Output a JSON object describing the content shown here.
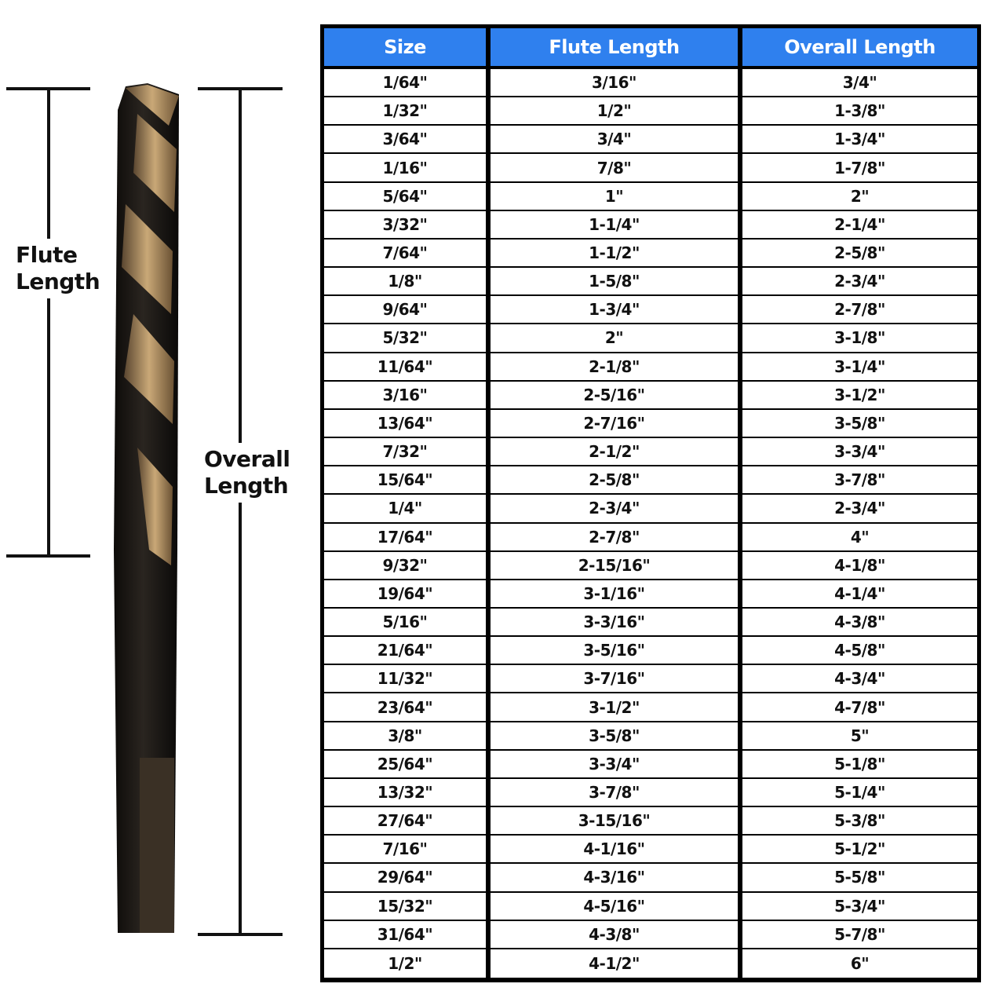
{
  "labels": {
    "flute": "Flute Length",
    "overall": "Overall Length"
  },
  "colors": {
    "header_bg": "#2f80ee",
    "header_text": "#ffffff",
    "border": "#000000"
  },
  "table": {
    "headers": [
      "Size",
      "Flute Length",
      "Overall Length"
    ],
    "rows": [
      [
        "1/64\"",
        "3/16\"",
        "3/4\""
      ],
      [
        "1/32\"",
        "1/2\"",
        "1-3/8\""
      ],
      [
        "3/64\"",
        "3/4\"",
        "1-3/4\""
      ],
      [
        "1/16\"",
        "7/8\"",
        "1-7/8\""
      ],
      [
        "5/64\"",
        "1\"",
        "2\""
      ],
      [
        "3/32\"",
        "1-1/4\"",
        "2-1/4\""
      ],
      [
        "7/64\"",
        "1-1/2\"",
        "2-5/8\""
      ],
      [
        "1/8\"",
        "1-5/8\"",
        "2-3/4\""
      ],
      [
        "9/64\"",
        "1-3/4\"",
        "2-7/8\""
      ],
      [
        "5/32\"",
        "2\"",
        "3-1/8\""
      ],
      [
        "11/64\"",
        "2-1/8\"",
        "3-1/4\""
      ],
      [
        "3/16\"",
        "2-5/16\"",
        "3-1/2\""
      ],
      [
        "13/64\"",
        "2-7/16\"",
        "3-5/8\""
      ],
      [
        "7/32\"",
        "2-1/2\"",
        "3-3/4\""
      ],
      [
        "15/64\"",
        "2-5/8\"",
        "3-7/8\""
      ],
      [
        "1/4\"",
        "2-3/4\"",
        "2-3/4\""
      ],
      [
        "17/64\"",
        "2-7/8\"",
        "4\""
      ],
      [
        "9/32\"",
        "2-15/16\"",
        "4-1/8\""
      ],
      [
        "19/64\"",
        "3-1/16\"",
        "4-1/4\""
      ],
      [
        "5/16\"",
        "3-3/16\"",
        "4-3/8\""
      ],
      [
        "21/64\"",
        "3-5/16\"",
        "4-5/8\""
      ],
      [
        "11/32\"",
        "3-7/16\"",
        "4-3/4\""
      ],
      [
        "23/64\"",
        "3-1/2\"",
        "4-7/8\""
      ],
      [
        "3/8\"",
        "3-5/8\"",
        "5\""
      ],
      [
        "25/64\"",
        "3-3/4\"",
        "5-1/8\""
      ],
      [
        "13/32\"",
        "3-7/8\"",
        "5-1/4\""
      ],
      [
        "27/64\"",
        "3-15/16\"",
        "5-3/8\""
      ],
      [
        "7/16\"",
        "4-1/16\"",
        "5-1/2\""
      ],
      [
        "29/64\"",
        "4-3/16\"",
        "5-5/8\""
      ],
      [
        "15/32\"",
        "4-5/16\"",
        "5-3/4\""
      ],
      [
        "31/64\"",
        "4-3/8\"",
        "5-7/8\""
      ],
      [
        "1/2\"",
        "4-1/2\"",
        "6\""
      ]
    ]
  }
}
